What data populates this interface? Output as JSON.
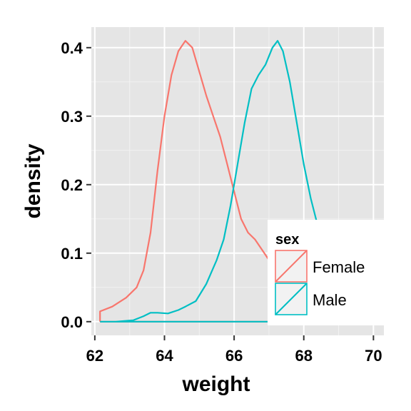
{
  "chart_data": {
    "type": "line",
    "xlabel": "weight",
    "ylabel": "density",
    "xlim": [
      61.9,
      70.3
    ],
    "ylim": [
      -0.02,
      0.43
    ],
    "x_ticks": [
      62,
      64,
      66,
      68,
      70
    ],
    "x_tick_labels": [
      "62",
      "64",
      "66",
      "68",
      "70"
    ],
    "y_ticks": [
      0.0,
      0.1,
      0.2,
      0.3,
      0.4
    ],
    "y_tick_labels": [
      "0.0",
      "0.1",
      "0.2",
      "0.3",
      "0.4"
    ],
    "grid": true,
    "legend": {
      "title": "sex",
      "placement": "bottom-right inside",
      "entries": [
        "Female",
        "Male"
      ]
    },
    "series": [
      {
        "name": "Female",
        "color": "#F8766D",
        "x": [
          62.15,
          62.15,
          62.5,
          62.9,
          63.2,
          63.4,
          63.6,
          63.8,
          64.0,
          64.2,
          64.4,
          64.6,
          64.8,
          65.0,
          65.2,
          65.4,
          65.6,
          65.8,
          66.0,
          66.2,
          66.4,
          66.6,
          66.8,
          67.0,
          67.2,
          67.5,
          67.8,
          68.2,
          68.6
        ],
        "y": [
          0.0,
          0.015,
          0.022,
          0.035,
          0.05,
          0.075,
          0.13,
          0.22,
          0.3,
          0.36,
          0.395,
          0.41,
          0.4,
          0.365,
          0.33,
          0.3,
          0.27,
          0.23,
          0.19,
          0.15,
          0.13,
          0.12,
          0.105,
          0.09,
          0.08,
          0.06,
          0.04,
          0.02,
          0.01
        ]
      },
      {
        "name": "Male",
        "color": "#00BFC4",
        "x": [
          62.15,
          62.6,
          63.1,
          63.4,
          63.6,
          63.8,
          64.1,
          64.4,
          64.6,
          64.9,
          65.2,
          65.5,
          65.7,
          65.9,
          66.1,
          66.3,
          66.5,
          66.7,
          66.9,
          67.1,
          67.25,
          67.4,
          67.6,
          67.8,
          68.0,
          68.2,
          68.4,
          68.6
        ],
        "y": [
          0.0,
          0.0,
          0.002,
          0.008,
          0.013,
          0.013,
          0.012,
          0.017,
          0.022,
          0.03,
          0.055,
          0.09,
          0.12,
          0.17,
          0.23,
          0.29,
          0.34,
          0.36,
          0.375,
          0.4,
          0.41,
          0.395,
          0.35,
          0.29,
          0.23,
          0.18,
          0.14,
          0.11
        ]
      }
    ]
  }
}
